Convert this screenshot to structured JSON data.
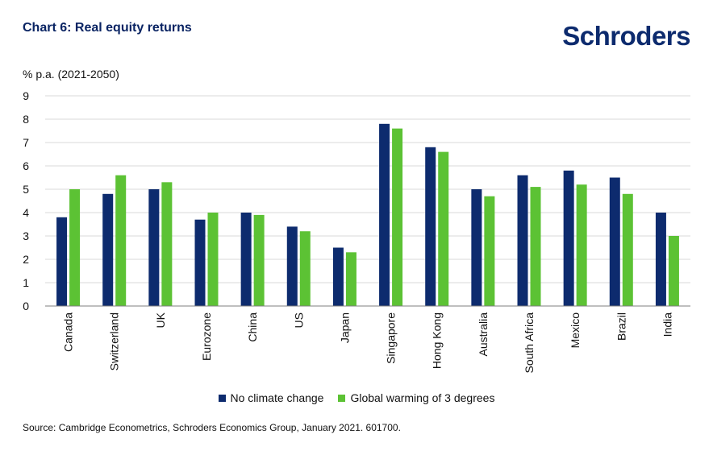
{
  "header": {
    "title": "Chart 6: Real equity returns",
    "brand": "Schroders"
  },
  "footer": {
    "source": "Source: Cambridge Econometrics, Schroders Economics Group, January 2021. 601700."
  },
  "colors": {
    "series1": "#0d2b6e",
    "series2": "#5cc234",
    "grid": "#d9d9d9",
    "axis": "#7f7f7f",
    "text": "#111111"
  },
  "chart_data": {
    "type": "bar",
    "title": "Chart 6: Real equity returns",
    "ylabel": "% p.a. (2021-2050)",
    "xlabel": "",
    "ylim": [
      0,
      9
    ],
    "yticks": [
      0,
      1,
      2,
      3,
      4,
      5,
      6,
      7,
      8,
      9
    ],
    "grid": true,
    "legend_position": "bottom",
    "categories": [
      "Canada",
      "Switzerland",
      "UK",
      "Eurozone",
      "China",
      "US",
      "Japan",
      "Singapore",
      "Hong Kong",
      "Australia",
      "South Africa",
      "Mexico",
      "Brazil",
      "India"
    ],
    "series": [
      {
        "name": "No climate change",
        "values": [
          3.8,
          4.8,
          5.0,
          3.7,
          4.0,
          3.4,
          2.5,
          7.8,
          6.8,
          5.0,
          5.6,
          5.8,
          5.5,
          4.0
        ]
      },
      {
        "name": "Global warming of 3 degrees",
        "values": [
          5.0,
          5.6,
          5.3,
          4.0,
          3.9,
          3.2,
          2.3,
          7.6,
          6.6,
          4.7,
          5.1,
          5.2,
          4.8,
          3.0
        ]
      }
    ]
  }
}
